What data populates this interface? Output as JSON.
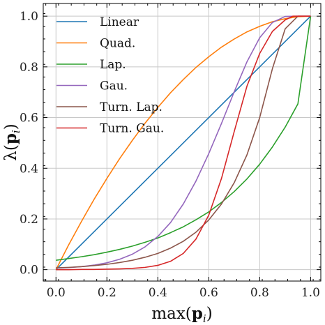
{
  "chart_data": {
    "type": "line",
    "xlabel": "max(p_i)",
    "ylabel": "λ(p_i)",
    "xlabel_parts": {
      "pre": "max(",
      "bold": "p",
      "sub": "i",
      "post": ")"
    },
    "ylabel_parts": {
      "pre": "λ(",
      "bold": "p",
      "sub": "i",
      "post": ")"
    },
    "xlim": [
      -0.05,
      1.04
    ],
    "ylim": [
      -0.045,
      1.05
    ],
    "xticks": [
      0.0,
      0.2,
      0.4,
      0.6,
      0.8,
      1.0
    ],
    "yticks": [
      0.0,
      0.2,
      0.4,
      0.6,
      0.8,
      1.0
    ],
    "xtick_labels": [
      "0.0",
      "0.2",
      "0.4",
      "0.6",
      "0.8",
      "1.0"
    ],
    "ytick_labels": [
      "0.0",
      "0.2",
      "0.4",
      "0.6",
      "0.8",
      "1.0"
    ],
    "grid": true,
    "legend_position": "top-left",
    "series": [
      {
        "name": "Linear",
        "color": "#1f77b4",
        "x": [
          0.0,
          0.5,
          1.0
        ],
        "y": [
          0.0,
          0.5,
          1.0
        ]
      },
      {
        "name": "Quad.",
        "color": "#ff7f0e",
        "x": [
          0.0,
          0.05,
          0.1,
          0.15,
          0.2,
          0.25,
          0.3,
          0.35,
          0.4,
          0.45,
          0.5,
          0.55,
          0.6,
          0.65,
          0.7,
          0.75,
          0.8,
          0.85,
          0.9,
          0.95,
          1.0
        ],
        "y": [
          0.0,
          0.098,
          0.19,
          0.278,
          0.36,
          0.438,
          0.51,
          0.578,
          0.64,
          0.698,
          0.75,
          0.798,
          0.84,
          0.878,
          0.91,
          0.938,
          0.96,
          0.978,
          0.99,
          0.998,
          1.0
        ]
      },
      {
        "name": "Lap.",
        "color": "#2ca02c",
        "x": [
          0.0,
          0.05,
          0.1,
          0.15,
          0.2,
          0.25,
          0.3,
          0.35,
          0.4,
          0.45,
          0.5,
          0.55,
          0.6,
          0.65,
          0.7,
          0.75,
          0.8,
          0.85,
          0.9,
          0.95,
          1.0
        ],
        "y": [
          0.037,
          0.044,
          0.051,
          0.059,
          0.069,
          0.08,
          0.093,
          0.108,
          0.125,
          0.146,
          0.169,
          0.197,
          0.228,
          0.265,
          0.308,
          0.358,
          0.416,
          0.484,
          0.562,
          0.654,
          1.0
        ]
      },
      {
        "name": "Gau.",
        "color": "#9467bd",
        "x": [
          0.0,
          0.05,
          0.1,
          0.15,
          0.2,
          0.25,
          0.3,
          0.35,
          0.4,
          0.45,
          0.5,
          0.55,
          0.6,
          0.65,
          0.7,
          0.75,
          0.8,
          0.85,
          0.9,
          0.95,
          1.0
        ],
        "y": [
          0.006,
          0.008,
          0.012,
          0.018,
          0.027,
          0.041,
          0.061,
          0.09,
          0.131,
          0.186,
          0.259,
          0.35,
          0.458,
          0.577,
          0.702,
          0.82,
          0.915,
          0.975,
          0.999,
          1.0,
          1.0
        ]
      },
      {
        "name": "Turn. Lap.",
        "color": "#8c564b",
        "x": [
          0.0,
          0.05,
          0.1,
          0.15,
          0.2,
          0.25,
          0.3,
          0.35,
          0.4,
          0.45,
          0.5,
          0.55,
          0.6,
          0.65,
          0.7,
          0.75,
          0.8,
          0.85,
          0.9,
          0.95,
          0.97,
          1.0
        ],
        "y": [
          0.007,
          0.009,
          0.012,
          0.016,
          0.021,
          0.028,
          0.037,
          0.049,
          0.064,
          0.085,
          0.112,
          0.148,
          0.196,
          0.259,
          0.343,
          0.453,
          0.6,
          0.793,
          0.95,
          1.0,
          1.0,
          1.0
        ]
      },
      {
        "name": "Turn. Gau.",
        "color": "#d62728",
        "x": [
          0.0,
          0.05,
          0.1,
          0.15,
          0.2,
          0.25,
          0.3,
          0.35,
          0.4,
          0.45,
          0.5,
          0.55,
          0.6,
          0.65,
          0.7,
          0.75,
          0.8,
          0.85,
          0.9,
          0.93,
          0.96,
          1.0
        ],
        "y": [
          0.0,
          0.0,
          0.001,
          0.001,
          0.002,
          0.003,
          0.005,
          0.009,
          0.017,
          0.033,
          0.064,
          0.121,
          0.215,
          0.36,
          0.545,
          0.724,
          0.853,
          0.94,
          0.985,
          1.0,
          1.0,
          1.0
        ]
      }
    ]
  }
}
